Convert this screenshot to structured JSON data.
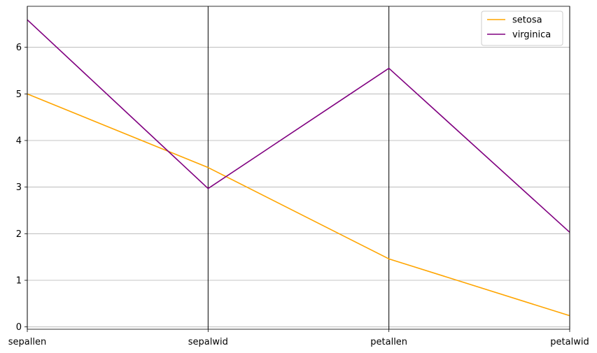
{
  "chart_data": {
    "type": "line",
    "subtype": "parallel-coordinates",
    "title": "",
    "xlabel": "",
    "ylabel": "",
    "categories": [
      "sepallen",
      "sepalwid",
      "petallen",
      "petalwid"
    ],
    "ylim": [
      -0.05,
      6.88
    ],
    "yticks": [
      0,
      1,
      2,
      3,
      4,
      5,
      6
    ],
    "grid": true,
    "series": [
      {
        "name": "setosa",
        "color": "#FFA500",
        "values": [
          5.0,
          3.42,
          1.46,
          0.24
        ]
      },
      {
        "name": "virginica",
        "color": "#800080",
        "values": [
          6.59,
          2.97,
          5.55,
          2.03
        ]
      }
    ],
    "legend": {
      "position": "upper-right",
      "entries": [
        "setosa",
        "virginica"
      ]
    }
  }
}
